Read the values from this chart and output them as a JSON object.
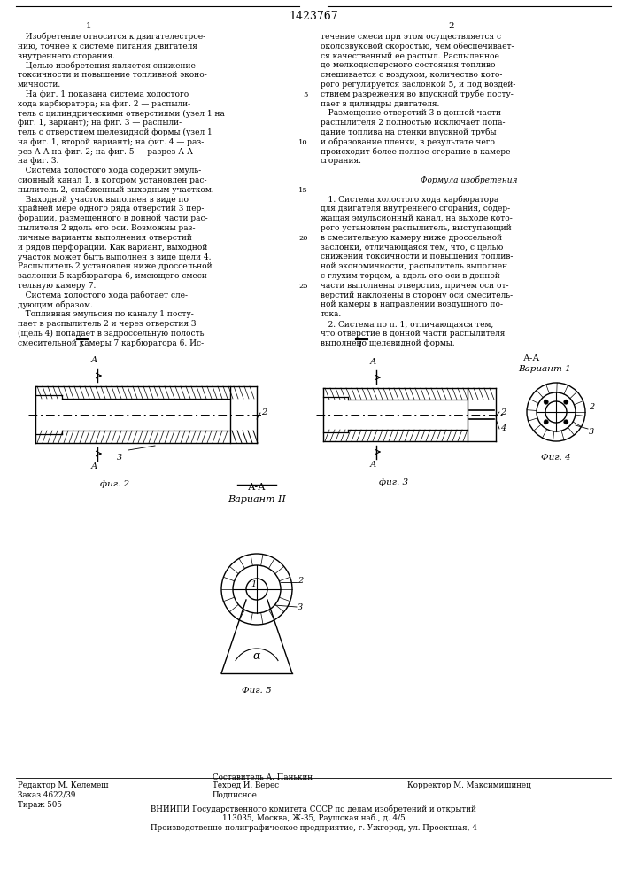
{
  "title": "1423767",
  "col1_header": "1",
  "col2_header": "2",
  "background": "#ffffff",
  "text_color": "#000000",
  "col1_text": [
    "   Изобретение относится к двигателестрое-",
    "нию, точнее к системе питания двигателя",
    "внутреннего сгорания.",
    "   Целью изобретения является снижение",
    "токсичности и повышение топливной эконо-",
    "мичности.",
    "   На фиг. 1 показана система холостого",
    "хода карбюратора; на фиг. 2 — распыли-",
    "тель с цилиндрическими отверстиями (узел 1 на",
    "фиг. 1, вариант); на фиг. 3 — распыли-",
    "тель с отверстием щелевидной формы (узел 1",
    "на фиг. 1, второй вариант); на фиг. 4 — раз-",
    "рез А-А на фиг. 2; на фиг. 5 — разрез А-А",
    "на фиг. 3.",
    "   Система холостого хода содержит эмуль-",
    "сионный канал 1, в котором установлен рас-",
    "пылитель 2, снабженный выходным участком.",
    "   Выходной участок выполнен в виде по",
    "крайней мере одного ряда отверстий 3 пер-",
    "форации, размещенного в донной части рас-",
    "пылителя 2 вдоль его оси. Возможны раз-",
    "личные варианты выполнения отверстий",
    "и рядов перфорации. Как вариант, выходной",
    "участок может быть выполнен в виде щели 4.",
    "Распылитель 2 установлен ниже дроссельной",
    "заслонки 5 карбюратора 6, имеющего смеси-",
    "тельную камеру 7.",
    "   Система холостого хода работает сле-",
    "дующим образом.",
    "   Топливная эмульсия по каналу 1 посту-",
    "пает в распылитель 2 и через отверстия 3",
    "(щель 4) попадает в задроссельную полость",
    "смесительной камеры 7 карбюратора 6. Ис-"
  ],
  "col2_text_lines": [
    [
      "течение смеси при этом осуществляется с",
      "normal"
    ],
    [
      "околозвуковой скоростью, чем обеспечивает-",
      "normal"
    ],
    [
      "ся качественный ее распыл. Распыленное",
      "normal"
    ],
    [
      "до мелкодисперсного состояния топливо",
      "normal"
    ],
    [
      "смешивается с воздухом, количество кото-",
      "normal"
    ],
    [
      "рого регулируется заслонкой 5, и под воздей-",
      "normal"
    ],
    [
      "ствием разрежения во впускной трубе посту-",
      "normal"
    ],
    [
      "пает в цилиндры двигателя.",
      "normal"
    ],
    [
      "   Размещение отверстий 3 в донной части",
      "normal"
    ],
    [
      "распылителя 2 полностью исключает попа-",
      "normal"
    ],
    [
      "дание топлива на стенки впускной трубы",
      "normal"
    ],
    [
      "и образование пленки, в результате чего",
      "normal"
    ],
    [
      "происходит более полное сгорание в камере",
      "normal"
    ],
    [
      "сгорания.",
      "normal"
    ],
    [
      "",
      "normal"
    ],
    [
      "Формула изобретения",
      "italic"
    ],
    [
      "",
      "normal"
    ],
    [
      "   1. Система холостого хода карбюратора",
      "normal"
    ],
    [
      "для двигателя внутреннего сгорания, содер-",
      "normal"
    ],
    [
      "жащая эмульсионный канал, на выходе кото-",
      "normal"
    ],
    [
      "рого установлен распылитель, выступающий",
      "normal"
    ],
    [
      "в смесительную камеру ниже дроссельной",
      "normal"
    ],
    [
      "заслонки, ",
      "normal"
    ],
    [
      "снижения токсичности и повышения топлив-",
      "normal"
    ],
    [
      "ной экономичности, распылитель выполнен",
      "normal"
    ],
    [
      "с глухим торцом, а вдоль его оси в донной",
      "normal"
    ],
    [
      "части выполнены отверстия, причем оси от-",
      "normal"
    ],
    [
      "верстий наклонены в сторону оси смеситель-",
      "normal"
    ],
    [
      "ной камеры в направлении воздушного по-",
      "normal"
    ],
    [
      "тока.",
      "normal"
    ],
    [
      "   2. Система по п. 1, ",
      "normal"
    ],
    [
      "что отверстие в донной части распылителя",
      "normal"
    ],
    [
      "выполнено щелевидной формы.",
      "normal"
    ]
  ],
  "footer_left1": "Редактор М. Келемеш",
  "footer_left2": "Заказ 4622/39",
  "footer_left3": "Тираж 505",
  "footer_mid1": "Составитель А. Панькин",
  "footer_mid2": "Техред И. Верес",
  "footer_mid3": "Подписное",
  "footer_right1": "Корректор М. Максимишинец",
  "footer_org": "ВНИИПИ Государственного комитета СССР по делам изобретений и открытий",
  "footer_addr": "113035, Москва, Ж-35, Раушская наб., д. 4/5",
  "footer_prod": "Производственно-полиграфическое предприятие, г. Ужгород, ул. Проектная, 4"
}
